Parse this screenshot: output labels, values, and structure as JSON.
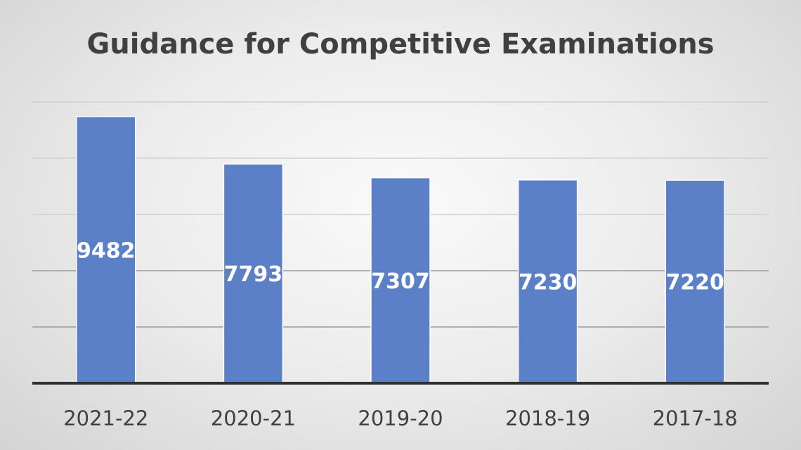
{
  "chart_data": {
    "type": "bar",
    "title": "Guidance for Competitive Examinations",
    "categories": [
      "2021-22",
      "2020-21",
      "2019-20",
      "2018-19",
      "2017-18"
    ],
    "values": [
      9482,
      7793,
      7307,
      7230,
      7220
    ],
    "xlabel": "",
    "ylabel": "",
    "ylim": [
      0,
      10000
    ],
    "grid": true,
    "legend": "none",
    "colors": {
      "bar": "#5b80c8",
      "data_label": "#ffffff"
    }
  }
}
